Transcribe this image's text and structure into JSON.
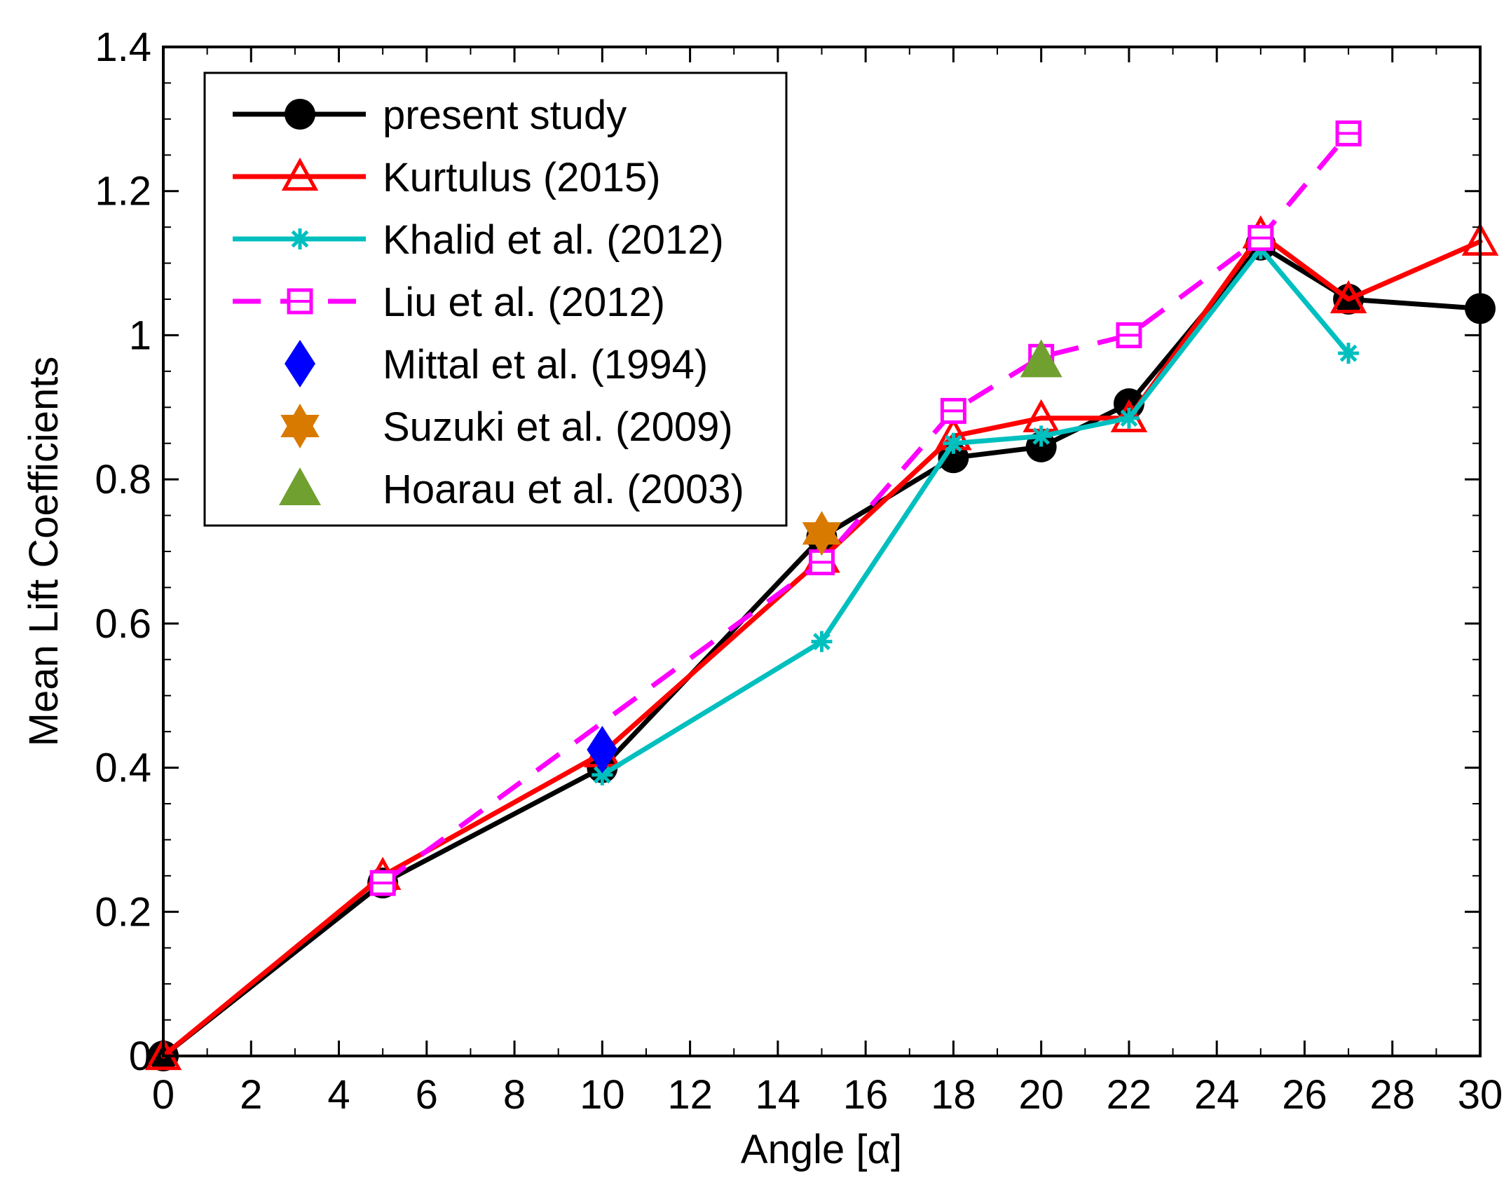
{
  "chart_data": {
    "type": "line",
    "xlabel": "Angle [α]",
    "ylabel": "Mean Lift Coefficients",
    "xlim": [
      0,
      30
    ],
    "ylim": [
      0,
      1.4
    ],
    "xticks": [
      "0",
      "2",
      "4",
      "6",
      "8",
      "10",
      "12",
      "14",
      "16",
      "18",
      "20",
      "22",
      "24",
      "26",
      "28",
      "30"
    ],
    "yticks": [
      "0",
      "0.2",
      "0.4",
      "0.6",
      "0.8",
      "1",
      "1.2",
      "1.4"
    ],
    "legend_position": "top-left",
    "series": [
      {
        "name": "present study",
        "color": "#000000",
        "marker": "circle",
        "line": "solid",
        "x": [
          0,
          5,
          10,
          15,
          18,
          20,
          22,
          25,
          27,
          30
        ],
        "y": [
          0,
          0.24,
          0.4,
          0.72,
          0.83,
          0.845,
          0.905,
          1.125,
          1.05,
          1.037
        ]
      },
      {
        "name": "Kurtulus (2015)",
        "color": "#ff0000",
        "marker": "triangle-open",
        "line": "solid",
        "x": [
          0,
          5,
          10,
          15,
          18,
          20,
          22,
          25,
          27,
          30
        ],
        "y": [
          0,
          0.25,
          0.42,
          0.69,
          0.86,
          0.885,
          0.885,
          1.14,
          1.05,
          1.13
        ]
      },
      {
        "name": "Khalid et al. (2012)",
        "color": "#00bfbf",
        "marker": "asterisk",
        "line": "solid",
        "x": [
          10,
          15,
          18,
          20,
          22,
          25,
          27
        ],
        "y": [
          0.39,
          0.575,
          0.85,
          0.86,
          0.885,
          1.12,
          0.975
        ]
      },
      {
        "name": "Liu et al. (2012)",
        "color": "#ff00ff",
        "marker": "square-open",
        "line": "dashed",
        "x": [
          5,
          15,
          18,
          20,
          22,
          25,
          27
        ],
        "y": [
          0.24,
          0.685,
          0.895,
          0.97,
          1.0,
          1.135,
          1.28
        ]
      },
      {
        "name": "Mittal et al. (1994)",
        "color": "#0000ff",
        "marker": "diamond",
        "x": [
          10
        ],
        "y": [
          0.425
        ]
      },
      {
        "name": "Suzuki et al. (2009)",
        "color": "#d97a00",
        "marker": "star",
        "x": [
          15
        ],
        "y": [
          0.725
        ]
      },
      {
        "name": "Hoarau et al. (2003)",
        "color": "#70a030",
        "marker": "triangle-filled",
        "x": [
          20
        ],
        "y": [
          0.965
        ]
      }
    ]
  }
}
